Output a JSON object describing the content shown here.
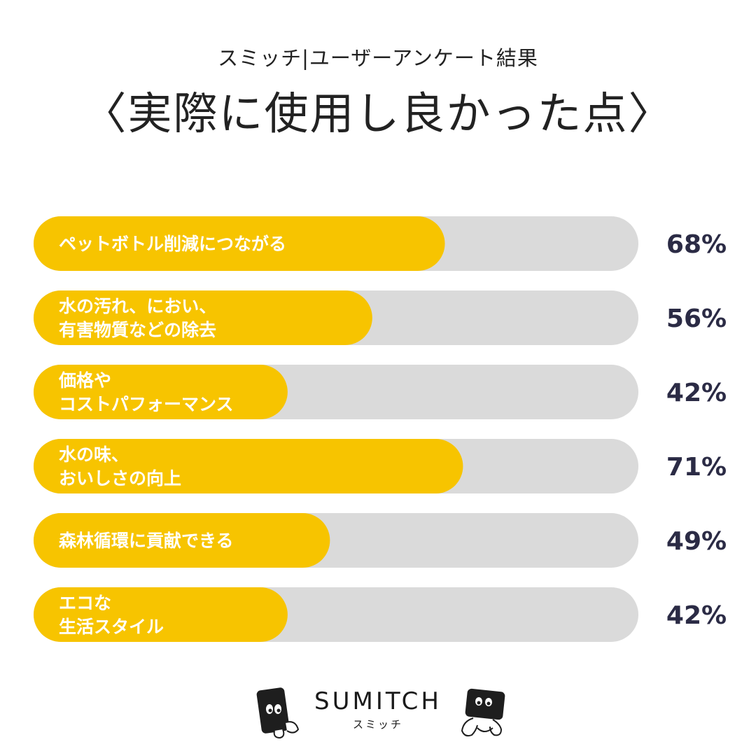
{
  "header": {
    "subtitle": "スミッチ|ユーザーアンケート結果",
    "title": "〈実際に使用し良かった点〉"
  },
  "colors": {
    "bar_fill": "#F7C400",
    "bar_track": "#DADADA",
    "bar_label": "#ffffff",
    "percent_text": "#2B2B45"
  },
  "chart_data": {
    "type": "bar",
    "orientation": "horizontal",
    "categories": [
      [
        "ペットボトル削減につながる"
      ],
      [
        "水の汚れ、におい、",
        "有害物質などの除去"
      ],
      [
        "価格や",
        "コストパフォーマンス"
      ],
      [
        "水の味、",
        "おいしさの向上"
      ],
      [
        "森林循環に貢献できる"
      ],
      [
        "エコな",
        "生活スタイル"
      ]
    ],
    "values": [
      68,
      56,
      42,
      71,
      49,
      42
    ],
    "value_labels": [
      "68%",
      "56%",
      "42%",
      "71%",
      "49%",
      "42%"
    ],
    "xlim": [
      0,
      100
    ],
    "grid": false
  },
  "footer": {
    "brand": "SUMITCH",
    "brand_sub": "スミッチ"
  }
}
